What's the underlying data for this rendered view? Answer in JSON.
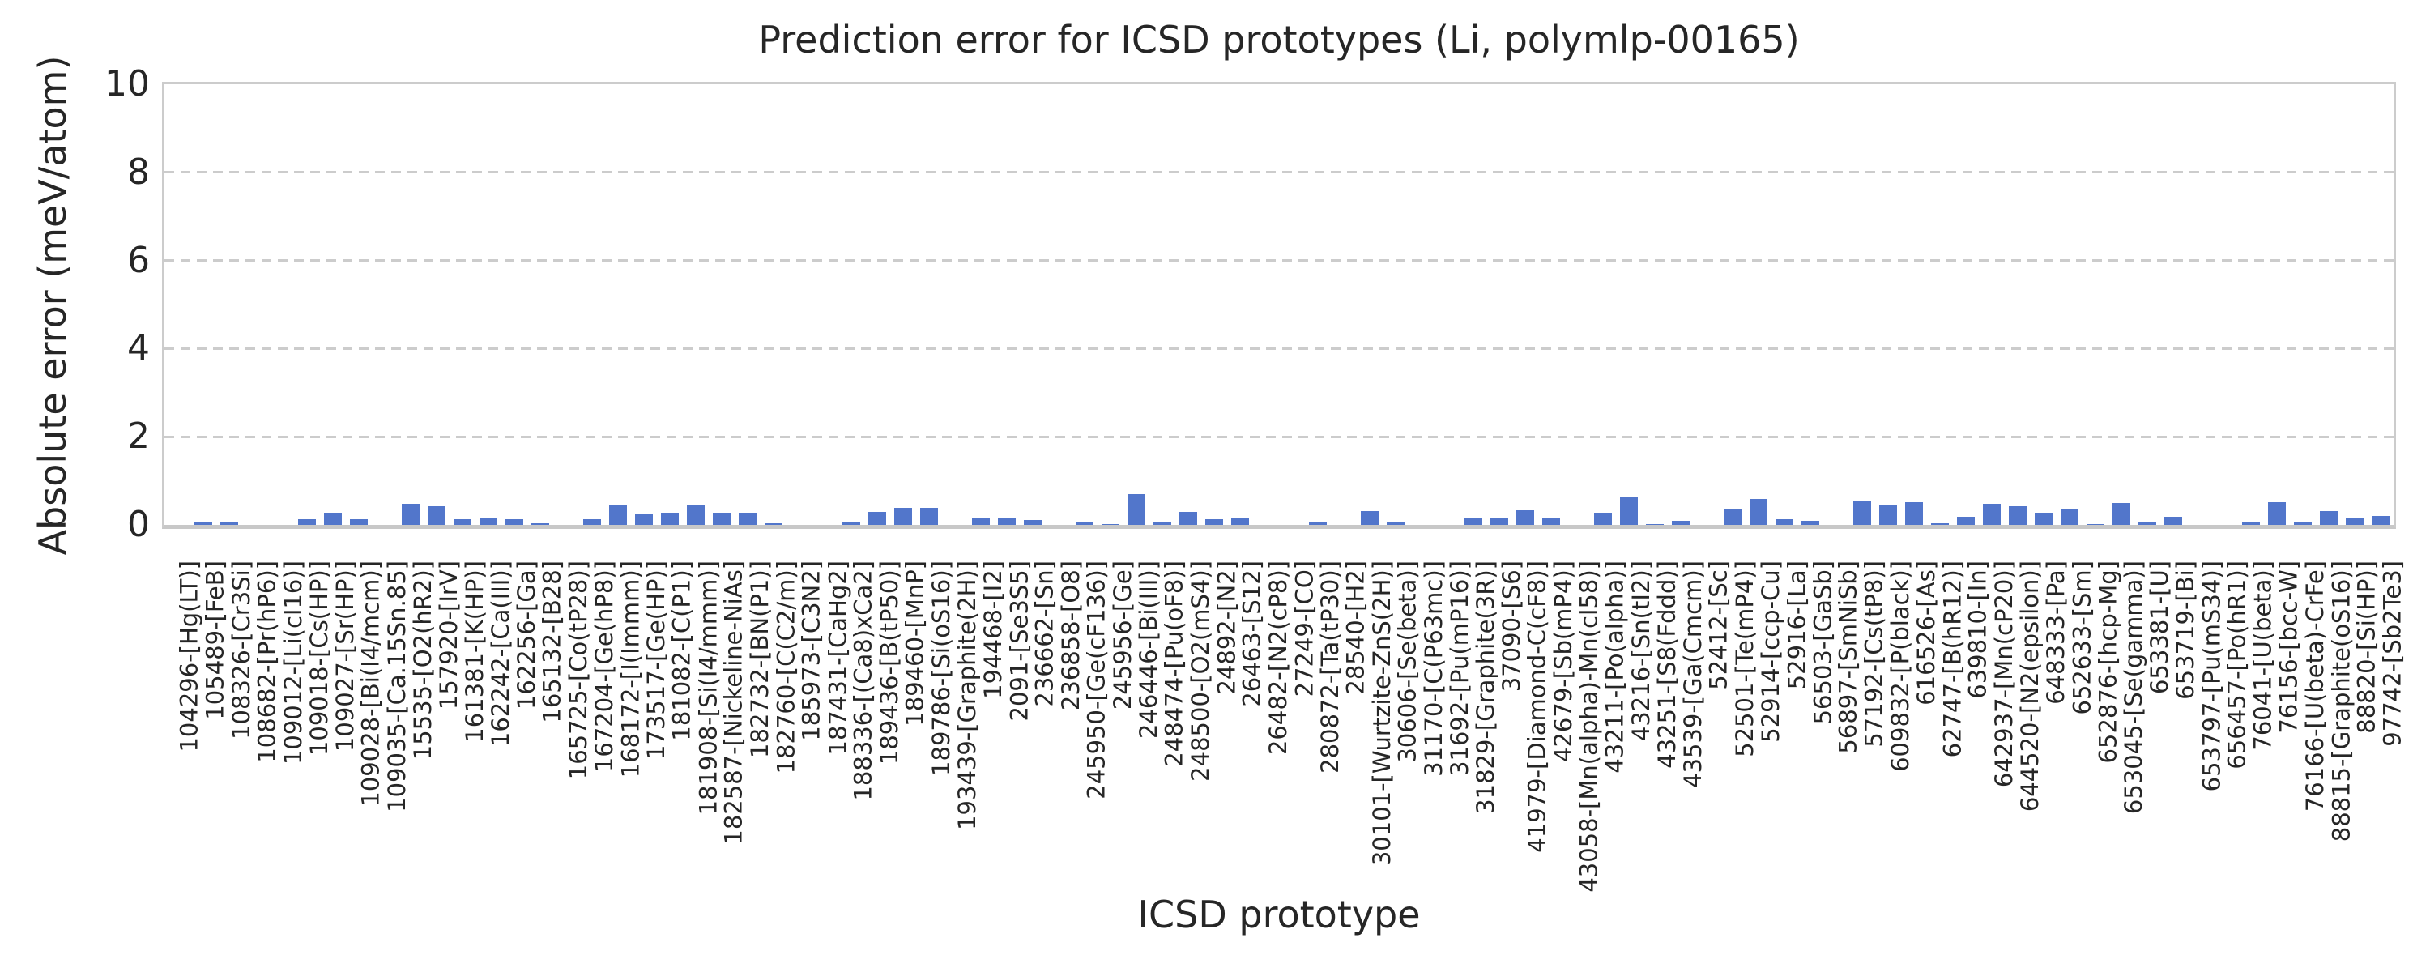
{
  "title": "Prediction error for ICSD prototypes (Li, polymlp-00165)",
  "xlabel": "ICSD prototype",
  "ylabel": "Absolute error (meV/atom)",
  "yticks": [
    "0",
    "2",
    "4",
    "6",
    "8",
    "10"
  ],
  "colors": {
    "bar": "#5276cb",
    "grid": "#cccccc",
    "axis_line": "#c8c8c8",
    "text": "#262626",
    "background": "#ffffff"
  },
  "chart_data": {
    "type": "bar",
    "title": "Prediction error for ICSD prototypes (Li, polymlp-00165)",
    "xlabel": "ICSD prototype",
    "ylabel": "Absolute error (meV/atom)",
    "ylim": [
      0,
      10
    ],
    "yticks": [
      0,
      2,
      4,
      6,
      8,
      10
    ],
    "grid": true,
    "grid_style": "dashed",
    "legend": "none",
    "bar_color": "#5276cb",
    "categories": [
      "104296-[Hg(LT)]",
      "105489-[FeB]",
      "108326-[Cr3Si]",
      "108682-[Pr(hP6)]",
      "109012-[Li(cI16)]",
      "109018-[Cs(HP)]",
      "109027-[Sr(HP)]",
      "109028-[Bi(I4/mcm)]",
      "109035-[Ca.15Sn.85]",
      "15535-[O2(hR2)]",
      "157920-[IrV]",
      "161381-[K(HP)]",
      "162242-[Ca(III)]",
      "162256-[Ga]",
      "165132-[B28]",
      "165725-[Co(tP28)]",
      "167204-[Ge(hP8)]",
      "168172-[I(Immm)]",
      "173517-[Ge(HP)]",
      "181082-[C(P1)]",
      "181908-[Si(I4/mmm)]",
      "182587-[Nickeline-NiAs]",
      "182732-[BN(P1)]",
      "182760-[C(C2/m)]",
      "185973-[C3N2]",
      "187431-[CaHg2]",
      "188336-[(Ca8)xCa2]",
      "189436-[B(tP50)]",
      "189460-[MnP]",
      "189786-[Si(oS16)]",
      "193439-[Graphite(2H)]",
      "194468-[I2]",
      "2091-[Se3S5]",
      "236662-[Sn]",
      "236858-[O8]",
      "245950-[Ge(cF136)]",
      "245956-[Ge]",
      "246446-[Bi(III)]",
      "248474-[Pu(oF8)]",
      "248500-[O2(mS4)]",
      "24892-[N2]",
      "26463-[S12]",
      "26482-[N2(cP8)]",
      "27249-[CO]",
      "280872-[Ta(tP30)]",
      "28540-[H2]",
      "30101-[Wurtzite-ZnS(2H)]",
      "30606-[Se(beta)]",
      "31170-[C(P63mc)]",
      "31692-[Pu(mP16)]",
      "31829-[Graphite(3R)]",
      "37090-[S6]",
      "41979-[Diamond-C(cF8)]",
      "42679-[Sb(mP4)]",
      "43058-[Mn(alpha)-Mn(cI58)]",
      "43211-[Po(alpha)]",
      "43216-[Sn(tI2)]",
      "43251-[S8(Fddd)]",
      "43539-[Ga(Cmcm)]",
      "52412-[Sc]",
      "52501-[Te(mP4)]",
      "52914-[ccp-Cu]",
      "52916-[La]",
      "56503-[GaSb]",
      "56897-[SmNiSb]",
      "57192-[Cs(tP8)]",
      "609832-[P(black)]",
      "616526-[As]",
      "62747-[B(hR12)]",
      "639810-[In]",
      "642937-[Mn(cP20)]",
      "644520-[N2(epsilon)]",
      "648333-[Pa]",
      "652633-[Sm]",
      "652876-[hcp-Mg]",
      "653045-[Se(gamma)]",
      "653381-[U]",
      "653719-[Bi]",
      "653797-[Pu(mS34)]",
      "656457-[Po(hR1)]",
      "76041-[U(beta)]",
      "76156-[bcc-W]",
      "76166-[U(beta)-CrFe]",
      "88815-[Graphite(oS16)]",
      "88820-[Si(HP)]",
      "97742-[Sb2Te3]"
    ],
    "values": [
      0.0,
      0.08,
      0.05,
      0.0,
      0.0,
      0.12,
      0.28,
      0.12,
      0.0,
      0.48,
      0.42,
      0.13,
      0.17,
      0.13,
      0.04,
      0.0,
      0.13,
      0.45,
      0.26,
      0.28,
      0.46,
      0.27,
      0.28,
      0.04,
      0.0,
      0.0,
      0.07,
      0.3,
      0.39,
      0.38,
      0.0,
      0.14,
      0.16,
      0.11,
      0.0,
      0.07,
      0.02,
      0.7,
      0.08,
      0.3,
      0.13,
      0.15,
      0.0,
      0.0,
      0.05,
      0.0,
      0.32,
      0.05,
      0.0,
      0.0,
      0.15,
      0.16,
      0.34,
      0.17,
      0.0,
      0.27,
      0.62,
      0.02,
      0.09,
      0.0,
      0.35,
      0.59,
      0.13,
      0.09,
      0.0,
      0.53,
      0.46,
      0.51,
      0.04,
      0.19,
      0.48,
      0.42,
      0.28,
      0.36,
      0.02,
      0.5,
      0.07,
      0.19,
      0.0,
      0.0,
      0.07,
      0.51,
      0.08,
      0.32,
      0.15,
      0.21
    ]
  }
}
